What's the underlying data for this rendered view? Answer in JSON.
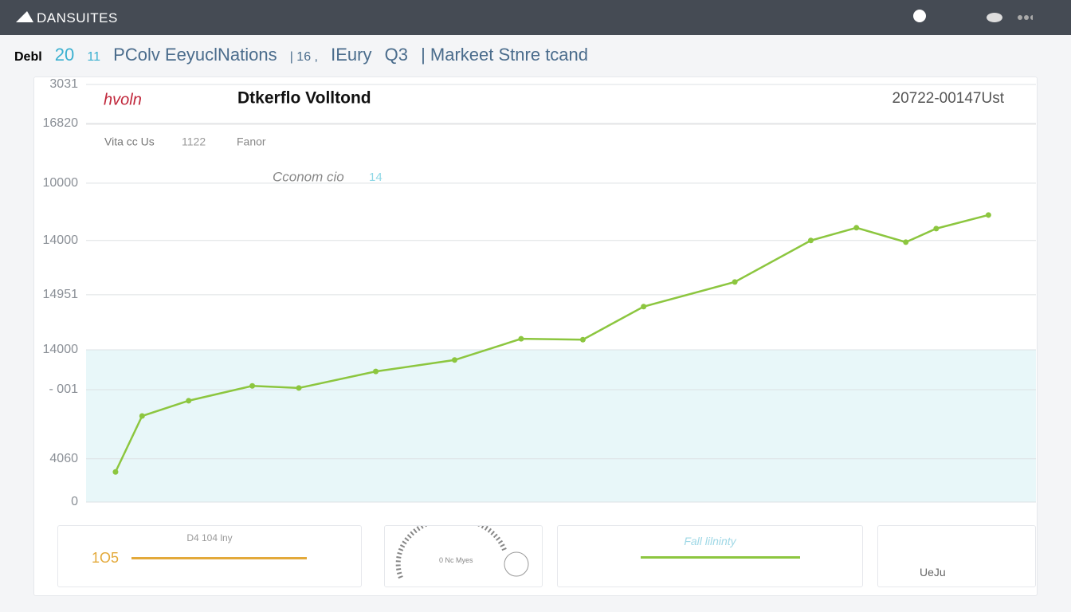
{
  "header": {
    "title": "DANSUITES"
  },
  "subtitle": [
    "Debl",
    "20",
    "11",
    "PColv EeyuclNations",
    "| 16 ,",
    "IEury",
    "Q3",
    "| Markeet Stnre tcand"
  ],
  "panel": {
    "badge": "hvoln",
    "title": "Dtkerflo Volltond",
    "date": "20722-00147Ust",
    "meta": [
      "Vita cc Us",
      "1122",
      "Fanor"
    ],
    "annotation": "Cconom cio",
    "annotation_value": "14"
  },
  "chart_data": {
    "type": "line",
    "color": "#8cc63f",
    "grid": true,
    "x": [
      3.1,
      5.9,
      10.8,
      17.5,
      22.4,
      30.5,
      38.8,
      45.8,
      52.3,
      58.7,
      68.3,
      76.3,
      81.1,
      86.3,
      89.5,
      95.0
    ],
    "values": [
      7.1,
      20.3,
      23.9,
      27.4,
      26.9,
      30.8,
      33.5,
      38.5,
      38.3,
      46.1,
      51.9,
      61.7,
      64.7,
      61.3,
      64.5,
      67.7
    ],
    "xlim": [
      0,
      100
    ],
    "ylim": [
      0,
      100
    ],
    "yticks": [
      {
        "value": 98.5,
        "label": "3031"
      },
      {
        "value": 89.3,
        "label": "16820"
      },
      {
        "value": 75.2,
        "label": "10000"
      },
      {
        "value": 61.7,
        "label": "14000"
      },
      {
        "value": 48.9,
        "label": "14951"
      },
      {
        "value": 35.9,
        "label": "14000"
      },
      {
        "value": 26.5,
        "label": "- 001"
      },
      {
        "value": 10.2,
        "label": "4060"
      },
      0
    ]
  },
  "cards": [
    {
      "label": "D4 104 lny",
      "value": "1O5"
    },
    {
      "label": "0 Nc Myes"
    },
    {
      "label": "Fall lilninty"
    },
    {
      "label": "UeJu"
    }
  ]
}
